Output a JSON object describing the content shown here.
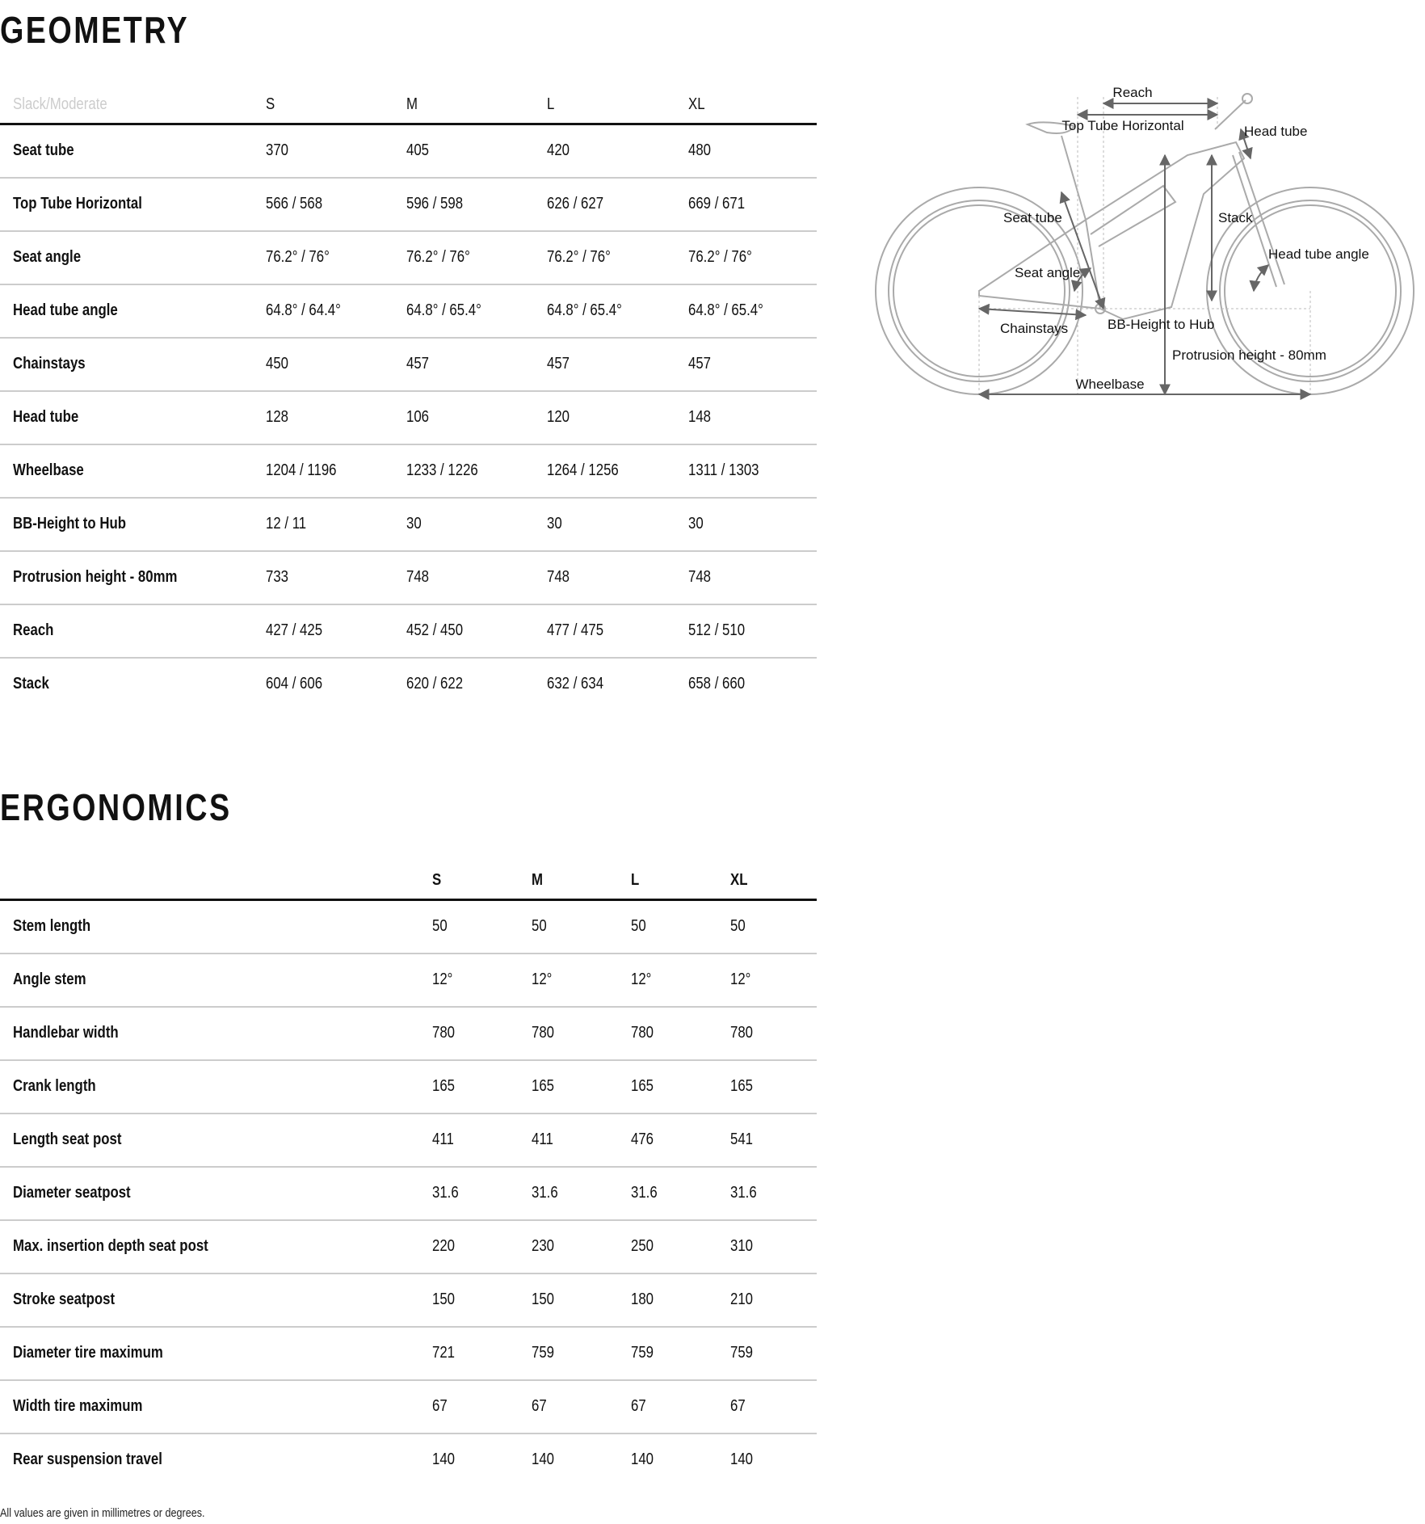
{
  "geometry": {
    "title": "GEOMETRY",
    "header": {
      "label": "Slack/Moderate",
      "sizes": [
        "S",
        "M",
        "L",
        "XL"
      ]
    },
    "rows": [
      {
        "label": "Seat tube",
        "values": [
          "370",
          "405",
          "420",
          "480"
        ]
      },
      {
        "label": "Top Tube Horizontal",
        "values": [
          "566 / 568",
          "596 / 598",
          "626 / 627",
          "669 / 671"
        ]
      },
      {
        "label": "Seat angle",
        "values": [
          "76.2° / 76°",
          "76.2° / 76°",
          "76.2° / 76°",
          "76.2° / 76°"
        ]
      },
      {
        "label": "Head tube angle",
        "values": [
          "64.8° / 64.4°",
          "64.8° / 65.4°",
          "64.8° / 65.4°",
          "64.8° / 65.4°"
        ]
      },
      {
        "label": "Chainstays",
        "values": [
          "450",
          "457",
          "457",
          "457"
        ]
      },
      {
        "label": "Head tube",
        "values": [
          "128",
          "106",
          "120",
          "148"
        ]
      },
      {
        "label": "Wheelbase",
        "values": [
          "1204 / 1196",
          "1233 / 1226",
          "1264 / 1256",
          "1311 / 1303"
        ]
      },
      {
        "label": "BB-Height to Hub",
        "values": [
          "12 / 11",
          "30",
          "30",
          "30"
        ]
      },
      {
        "label": "Protrusion height - 80mm",
        "values": [
          "733",
          "748",
          "748",
          "748"
        ]
      },
      {
        "label": "Reach",
        "values": [
          "427 / 425",
          "452 / 450",
          "477 / 475",
          "512 / 510"
        ]
      },
      {
        "label": "Stack",
        "values": [
          "604 / 606",
          "620 / 622",
          "632 / 634",
          "658 / 660"
        ]
      }
    ]
  },
  "diagram": {
    "labels": {
      "reach": "Reach",
      "top_tube": "Top Tube Horizontal",
      "head_tube": "Head tube",
      "seat_tube": "Seat tube",
      "stack": "Stack",
      "head_tube_angle": "Head tube angle",
      "seat_angle": "Seat angle",
      "chainstays": "Chainstays",
      "bb_height": "BB-Height to Hub",
      "protrusion": "Protrusion height - 80mm",
      "wheelbase": "Wheelbase"
    }
  },
  "ergonomics": {
    "title": "ERGONOMICS",
    "header": {
      "label": "",
      "sizes": [
        "S",
        "M",
        "L",
        "XL"
      ]
    },
    "rows": [
      {
        "label": "Stem length",
        "values": [
          "50",
          "50",
          "50",
          "50"
        ]
      },
      {
        "label": "Angle stem",
        "values": [
          "12°",
          "12°",
          "12°",
          "12°"
        ]
      },
      {
        "label": "Handlebar width",
        "values": [
          "780",
          "780",
          "780",
          "780"
        ]
      },
      {
        "label": "Crank length",
        "values": [
          "165",
          "165",
          "165",
          "165"
        ]
      },
      {
        "label": "Length seat post",
        "values": [
          "411",
          "411",
          "476",
          "541"
        ]
      },
      {
        "label": "Diameter seatpost",
        "values": [
          "31.6",
          "31.6",
          "31.6",
          "31.6"
        ]
      },
      {
        "label": "Max. insertion depth seat post",
        "values": [
          "220",
          "230",
          "250",
          "310"
        ]
      },
      {
        "label": "Stroke seatpost",
        "values": [
          "150",
          "150",
          "180",
          "210"
        ]
      },
      {
        "label": "Diameter tire maximum",
        "values": [
          "721",
          "759",
          "759",
          "759"
        ]
      },
      {
        "label": "Width tire maximum",
        "values": [
          "67",
          "67",
          "67",
          "67"
        ]
      },
      {
        "label": "Rear suspension travel",
        "values": [
          "140",
          "140",
          "140",
          "140"
        ]
      }
    ]
  },
  "footer": "All values are given in millimetres or degrees."
}
